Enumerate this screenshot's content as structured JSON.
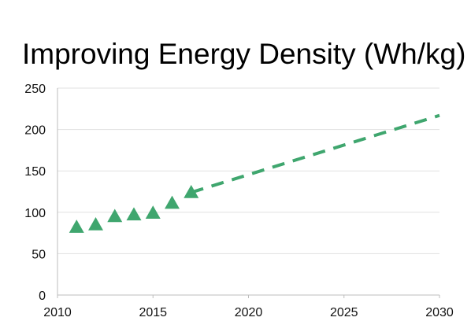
{
  "chart_data": {
    "type": "scatter",
    "title": "Improving Energy Density (Wh/kg)",
    "xlabel": "",
    "ylabel": "",
    "xlim": [
      2010,
      2030
    ],
    "ylim": [
      0,
      250
    ],
    "x_ticks": [
      "2010",
      "2015",
      "2020",
      "2025",
      "2030"
    ],
    "y_ticks": [
      "0",
      "50",
      "100",
      "150",
      "200",
      "250"
    ],
    "grid": true,
    "series": [
      {
        "marker": "triangle",
        "color": "#3fa66e",
        "points": [
          {
            "x": 2011,
            "y": 82
          },
          {
            "x": 2012,
            "y": 85
          },
          {
            "x": 2013,
            "y": 95
          },
          {
            "x": 2014,
            "y": 97
          },
          {
            "x": 2015,
            "y": 99
          },
          {
            "x": 2016,
            "y": 111
          },
          {
            "x": 2017,
            "y": 124
          }
        ]
      },
      {
        "line_style": "dashed",
        "color": "#3fa66e",
        "points": [
          {
            "x": 2017,
            "y": 124
          },
          {
            "x": 2030,
            "y": 217
          }
        ]
      }
    ]
  }
}
